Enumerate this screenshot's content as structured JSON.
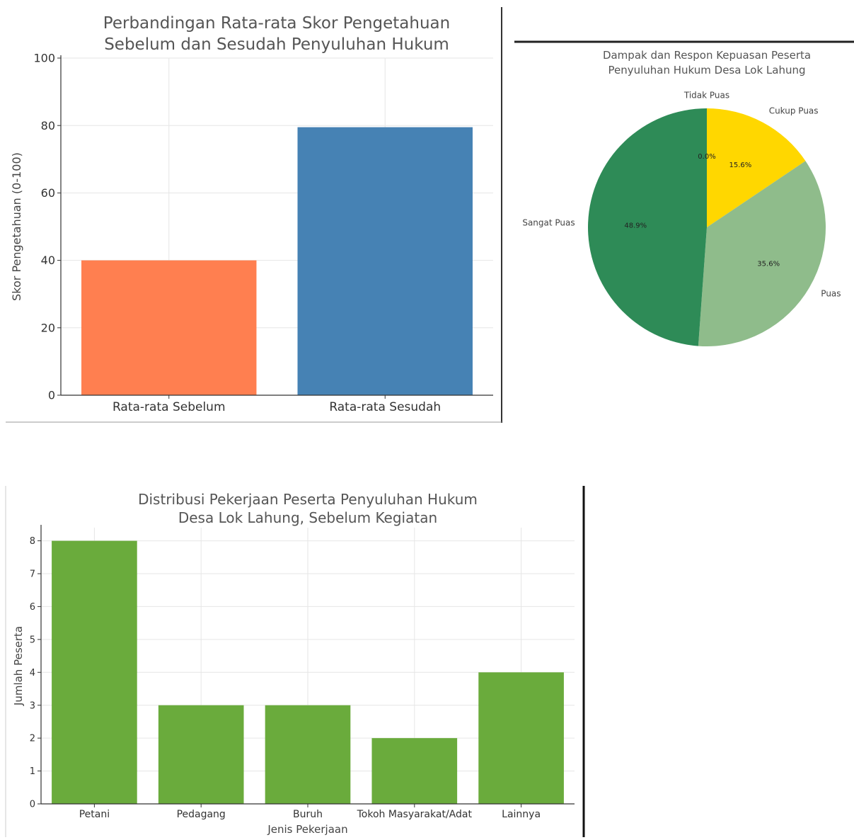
{
  "chart_data": [
    {
      "type": "bar",
      "title": [
        "Perbandingan Rata-rata Skor Pengetahuan",
        "Sebelum dan Sesudah Penyuluhan Hukum"
      ],
      "categories": [
        "Rata-rata Sebelum",
        "Rata-rata Sesudah"
      ],
      "values": [
        40,
        79.5
      ],
      "colors": [
        "#FF7F50",
        "#4682B4"
      ],
      "ylabel": "Skor Pengetahuan (0-100)",
      "xlabel": "",
      "ylim": [
        0,
        100
      ],
      "yticks": [
        "0",
        "20",
        "40",
        "60",
        "80",
        "100"
      ],
      "grid": true
    },
    {
      "type": "pie",
      "title": [
        "Dampak dan Respon Kepuasan Peserta",
        "Penyuluhan Hukum Desa Lok Lahung"
      ],
      "labels": [
        "Tidak Puas",
        "Cukup Puas",
        "Puas",
        "Sangat Puas"
      ],
      "values": [
        0.0,
        15.6,
        35.6,
        48.9
      ],
      "autopct": [
        "0.0%",
        "15.6%",
        "35.6%",
        "48.9%"
      ],
      "colors": [
        "#FFD700",
        "#FFD700",
        "#8FBC8B",
        "#2E8B57"
      ],
      "start_angle_deg": 90,
      "direction": "clockwise"
    },
    {
      "type": "bar",
      "title": [
        "Distribusi Pekerjaan Peserta Penyuluhan Hukum",
        "Desa Lok Lahung, Sebelum Kegiatan"
      ],
      "categories": [
        "Petani",
        "Pedagang",
        "Buruh",
        "Tokoh Masyarakat/Adat",
        "Lainnya"
      ],
      "values": [
        8,
        3,
        3,
        2,
        4
      ],
      "colors": [
        "#6AAB3C"
      ],
      "ylabel": "Jumlah Peserta",
      "xlabel": "Jenis Pekerjaan",
      "ylim": [
        0,
        8.4
      ],
      "yticks": [
        "0",
        "1",
        "2",
        "3",
        "4",
        "5",
        "6",
        "7",
        "8"
      ],
      "grid": true
    }
  ]
}
